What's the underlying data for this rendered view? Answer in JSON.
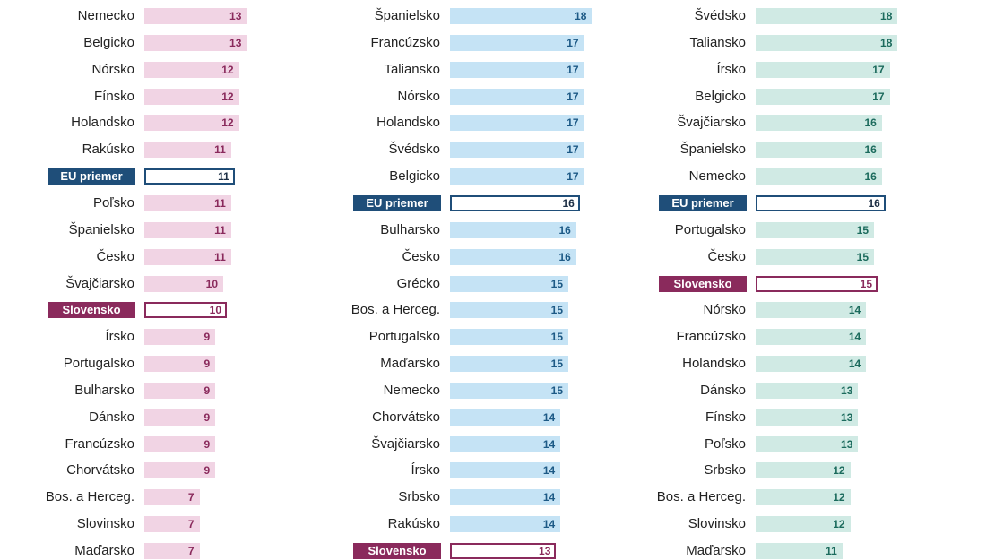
{
  "chart_data": {
    "type": "bar",
    "orientation": "horizontal",
    "colors": {
      "panel1_bar": "#f1d4e4",
      "panel1_text": "#8a2a5c",
      "panel2_bar": "#c5e3f5",
      "panel2_text": "#1d5a86",
      "panel3_bar": "#d0eae4",
      "panel3_text": "#1c6b5d",
      "eu": "#1f4e79",
      "slovensko": "#8a2a5c"
    },
    "panels": [
      {
        "rows": [
          {
            "label": "Nemecko",
            "value": 13
          },
          {
            "label": "Belgicko",
            "value": 13
          },
          {
            "label": "Nórsko",
            "value": 12
          },
          {
            "label": "Fínsko",
            "value": 12
          },
          {
            "label": "Holandsko",
            "value": 12
          },
          {
            "label": "Rakúsko",
            "value": 11
          },
          {
            "label": "EU priemer",
            "value": 11,
            "highlight": "eu"
          },
          {
            "label": "Poľsko",
            "value": 11
          },
          {
            "label": "Španielsko",
            "value": 11
          },
          {
            "label": "Česko",
            "value": 11
          },
          {
            "label": "Švajčiarsko",
            "value": 10
          },
          {
            "label": "Slovensko",
            "value": 10,
            "highlight": "sk"
          },
          {
            "label": "Írsko",
            "value": 9
          },
          {
            "label": "Portugalsko",
            "value": 9
          },
          {
            "label": "Bulharsko",
            "value": 9
          },
          {
            "label": "Dánsko",
            "value": 9
          },
          {
            "label": "Francúzsko",
            "value": 9
          },
          {
            "label": "Chorvátsko",
            "value": 9
          },
          {
            "label": "Bos. a Herceg.",
            "value": 7
          },
          {
            "label": "Slovinsko",
            "value": 7
          },
          {
            "label": "Maďarsko",
            "value": 7
          }
        ]
      },
      {
        "rows": [
          {
            "label": "Španielsko",
            "value": 18
          },
          {
            "label": "Francúzsko",
            "value": 17
          },
          {
            "label": "Taliansko",
            "value": 17
          },
          {
            "label": "Nórsko",
            "value": 17
          },
          {
            "label": "Holandsko",
            "value": 17
          },
          {
            "label": "Švédsko",
            "value": 17
          },
          {
            "label": "Belgicko",
            "value": 17
          },
          {
            "label": "EU priemer",
            "value": 16,
            "highlight": "eu"
          },
          {
            "label": "Bulharsko",
            "value": 16
          },
          {
            "label": "Česko",
            "value": 16
          },
          {
            "label": "Grécko",
            "value": 15
          },
          {
            "label": "Bos. a Herceg.",
            "value": 15
          },
          {
            "label": "Portugalsko",
            "value": 15
          },
          {
            "label": "Maďarsko",
            "value": 15
          },
          {
            "label": "Nemecko",
            "value": 15
          },
          {
            "label": "Chorvátsko",
            "value": 14
          },
          {
            "label": "Švajčiarsko",
            "value": 14
          },
          {
            "label": "Írsko",
            "value": 14
          },
          {
            "label": "Srbsko",
            "value": 14
          },
          {
            "label": "Rakúsko",
            "value": 14
          },
          {
            "label": "Slovensko",
            "value": 13,
            "highlight": "sk"
          }
        ]
      },
      {
        "rows": [
          {
            "label": "Švédsko",
            "value": 18
          },
          {
            "label": "Taliansko",
            "value": 18
          },
          {
            "label": "Írsko",
            "value": 17
          },
          {
            "label": "Belgicko",
            "value": 17
          },
          {
            "label": "Švajčiarsko",
            "value": 16
          },
          {
            "label": "Španielsko",
            "value": 16
          },
          {
            "label": "Nemecko",
            "value": 16
          },
          {
            "label": "EU priemer",
            "value": 16,
            "highlight": "eu"
          },
          {
            "label": "Portugalsko",
            "value": 15
          },
          {
            "label": "Česko",
            "value": 15
          },
          {
            "label": "Slovensko",
            "value": 15,
            "highlight": "sk"
          },
          {
            "label": "Nórsko",
            "value": 14
          },
          {
            "label": "Francúzsko",
            "value": 14
          },
          {
            "label": "Holandsko",
            "value": 14
          },
          {
            "label": "Dánsko",
            "value": 13
          },
          {
            "label": "Fínsko",
            "value": 13
          },
          {
            "label": "Poľsko",
            "value": 13
          },
          {
            "label": "Srbsko",
            "value": 12
          },
          {
            "label": "Bos. a Herceg.",
            "value": 12
          },
          {
            "label": "Slovinsko",
            "value": 12
          },
          {
            "label": "Maďarsko",
            "value": 11
          }
        ]
      }
    ]
  }
}
